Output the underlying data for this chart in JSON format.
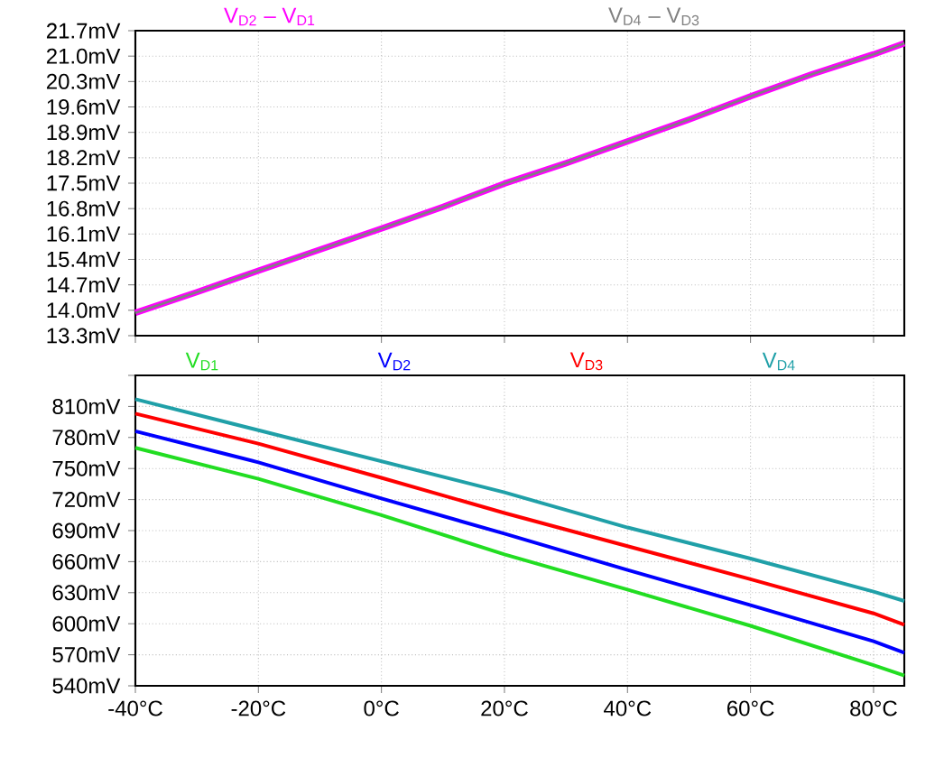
{
  "chart_data": [
    {
      "type": "line",
      "x": [
        -40,
        -30,
        -20,
        -10,
        0,
        10,
        20,
        30,
        40,
        50,
        60,
        70,
        80,
        85
      ],
      "series": [
        {
          "name": "V$_{D2}$ – V$_{D1}$",
          "color": "#ff00ff",
          "values": [
            13.93,
            14.5,
            15.09,
            15.67,
            16.25,
            16.85,
            17.49,
            18.05,
            18.65,
            19.25,
            19.89,
            20.5,
            21.05,
            21.35
          ]
        },
        {
          "name": "V$_{D4}$ – V$_{D3}$",
          "color": "#808080",
          "values": [
            13.93,
            14.5,
            15.09,
            15.67,
            16.25,
            16.85,
            17.49,
            18.05,
            18.65,
            19.25,
            19.89,
            20.5,
            21.05,
            21.35
          ]
        }
      ],
      "xlim": [
        -40,
        85
      ],
      "ylim": [
        13.3,
        21.7
      ],
      "xticks": [
        {
          "value": -40,
          "label": null
        },
        {
          "value": -20,
          "label": null
        },
        {
          "value": 0,
          "label": null
        },
        {
          "value": 20,
          "label": null
        },
        {
          "value": 40,
          "label": null
        },
        {
          "value": 60,
          "label": null
        },
        {
          "value": 80,
          "label": null
        }
      ],
      "yticks": [
        {
          "value": 13.3,
          "label": "13.3mV"
        },
        {
          "value": 14.0,
          "label": "14.0mV"
        },
        {
          "value": 14.7,
          "label": "14.7mV"
        },
        {
          "value": 15.4,
          "label": "15.4mV"
        },
        {
          "value": 16.1,
          "label": "16.1mV"
        },
        {
          "value": 16.8,
          "label": "16.8mV"
        },
        {
          "value": 17.5,
          "label": "17.5mV"
        },
        {
          "value": 18.2,
          "label": "18.2mV"
        },
        {
          "value": 18.9,
          "label": "18.9mV"
        },
        {
          "value": 19.6,
          "label": "19.6mV"
        },
        {
          "value": 20.3,
          "label": "20.3mV"
        },
        {
          "value": 21.0,
          "label": "21.0mV"
        },
        {
          "value": 21.7,
          "label": "21.7mV"
        }
      ],
      "grid": true,
      "legend": "top",
      "tick_labels": "y"
    },
    {
      "type": "line",
      "x": [
        -40,
        -20,
        0,
        20,
        40,
        60,
        80,
        85
      ],
      "series": [
        {
          "name": "V$_{D1}$",
          "color": "#22dd22",
          "values": [
            770,
            740,
            705,
            667,
            633,
            598,
            560,
            550
          ]
        },
        {
          "name": "V$_{D2}$",
          "color": "#0000ff",
          "values": [
            786,
            756,
            721,
            687,
            652,
            618,
            583,
            572
          ]
        },
        {
          "name": "V$_{D3}$",
          "color": "#ff0000",
          "values": [
            803,
            774,
            741,
            707,
            675,
            643,
            610,
            599
          ]
        },
        {
          "name": "V$_{D4}$",
          "color": "#20a0a8",
          "values": [
            817,
            787,
            757,
            727,
            693,
            663,
            631,
            622
          ]
        }
      ],
      "xlim": [
        -40,
        85
      ],
      "ylim": [
        540,
        840
      ],
      "xticks": [
        {
          "value": -40,
          "label": "-40°C"
        },
        {
          "value": -20,
          "label": "-20°C"
        },
        {
          "value": 0,
          "label": "0°C"
        },
        {
          "value": 20,
          "label": "20°C"
        },
        {
          "value": 40,
          "label": "40°C"
        },
        {
          "value": 60,
          "label": "60°C"
        },
        {
          "value": 80,
          "label": "80°C"
        }
      ],
      "yticks": [
        {
          "value": 540,
          "label": "540mV"
        },
        {
          "value": 570,
          "label": "570mV"
        },
        {
          "value": 600,
          "label": "600mV"
        },
        {
          "value": 630,
          "label": "630mV"
        },
        {
          "value": 660,
          "label": "660mV"
        },
        {
          "value": 690,
          "label": "690mV"
        },
        {
          "value": 720,
          "label": "720mV"
        },
        {
          "value": 750,
          "label": "750mV"
        },
        {
          "value": 780,
          "label": "780mV"
        },
        {
          "value": 810,
          "label": "810mV"
        },
        {
          "value": 840,
          "label": null
        }
      ],
      "grid": true,
      "legend": "top"
    }
  ]
}
